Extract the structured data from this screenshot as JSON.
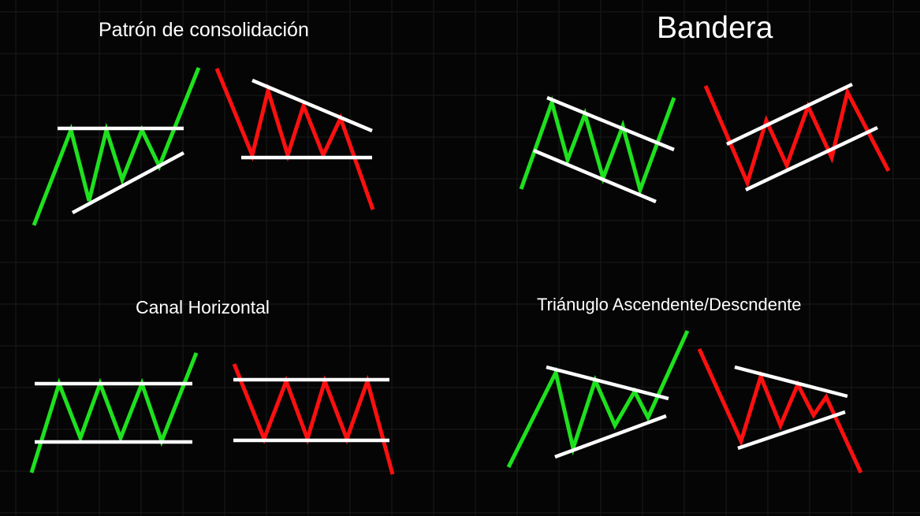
{
  "titles": {
    "consolidation": "Patrón de consolidación",
    "flag": "Bandera",
    "horizontal_channel": "Canal Horizontal",
    "triangle": "Triánuglo Ascendente/Descndente"
  },
  "colors": {
    "background": "#050505",
    "grid": "#1a1a1a",
    "bullish": "#1ee11e",
    "bearish": "#ff1010",
    "boundary": "#ffffff",
    "text": "#ffffff"
  },
  "diagrams": [
    {
      "name": "consolidation-bullish",
      "trend": "bullish"
    },
    {
      "name": "consolidation-bearish",
      "trend": "bearish"
    },
    {
      "name": "flag-bullish",
      "trend": "bullish"
    },
    {
      "name": "flag-bearish",
      "trend": "bearish"
    },
    {
      "name": "channel-bullish",
      "trend": "bullish"
    },
    {
      "name": "channel-bearish",
      "trend": "bearish"
    },
    {
      "name": "triangle-bullish",
      "trend": "bullish"
    },
    {
      "name": "triangle-bearish",
      "trend": "bearish"
    }
  ]
}
